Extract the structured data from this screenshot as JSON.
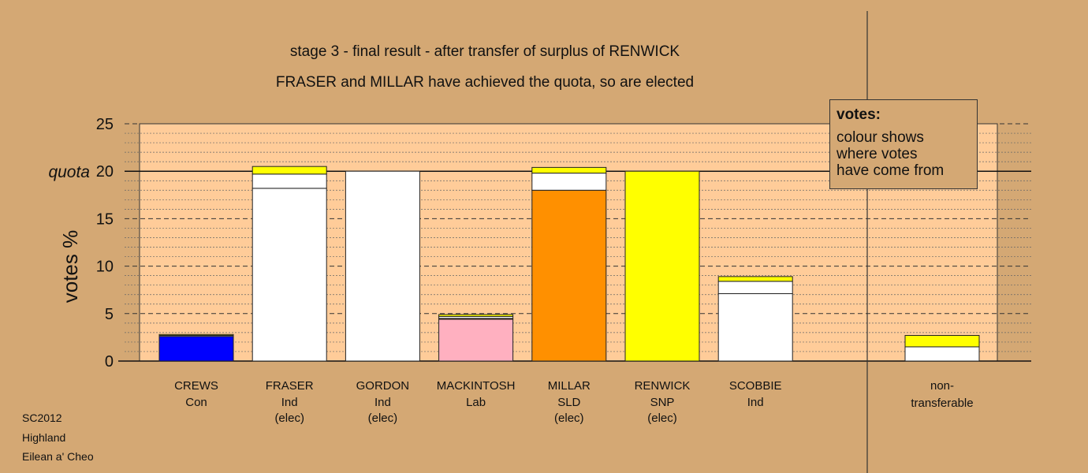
{
  "chart_data": {
    "type": "bar",
    "stacked": true,
    "title": "stage 3 - final result - after transfer of surplus of RENWICK",
    "subtitle": "FRASER and MILLAR have achieved the quota, so are elected",
    "ylabel": "votes %",
    "ylim": [
      0,
      25
    ],
    "yticks": [
      0,
      5,
      10,
      15,
      20,
      25
    ],
    "quota": 20,
    "quota_label": "quota",
    "grid": true,
    "categories": [
      {
        "name": "CREWS",
        "party": "Con",
        "status": "",
        "segments": [
          {
            "value": 2.6,
            "color": "#0000ff"
          },
          {
            "value": 0.1,
            "color": "#ffffff"
          },
          {
            "value": 0.1,
            "color": "#ffff00"
          }
        ]
      },
      {
        "name": "FRASER",
        "party": "Ind",
        "status": "(elec)",
        "segments": [
          {
            "value": 18.2,
            "color": "#ffffff"
          },
          {
            "value": 1.5,
            "color": "#ffffff"
          },
          {
            "value": 0.8,
            "color": "#ffff00"
          }
        ]
      },
      {
        "name": "GORDON",
        "party": "Ind",
        "status": "(elec)",
        "segments": [
          {
            "value": 20.0,
            "color": "#ffffff"
          }
        ]
      },
      {
        "name": "MACKINTOSH",
        "party": "Lab",
        "status": "",
        "segments": [
          {
            "value": 4.4,
            "color": "#ffb0c0"
          },
          {
            "value": 0.1,
            "color": "#ff8c00"
          },
          {
            "value": 0.2,
            "color": "#ffffff"
          },
          {
            "value": 0.2,
            "color": "#ffff00"
          }
        ]
      },
      {
        "name": "MILLAR",
        "party": "SLD",
        "status": "(elec)",
        "segments": [
          {
            "value": 18.0,
            "color": "#ff9000"
          },
          {
            "value": 1.8,
            "color": "#ffffff"
          },
          {
            "value": 0.6,
            "color": "#ffff00"
          }
        ]
      },
      {
        "name": "RENWICK",
        "party": "SNP",
        "status": "(elec)",
        "segments": [
          {
            "value": 20.0,
            "color": "#ffff00"
          }
        ]
      },
      {
        "name": "SCOBBIE",
        "party": "Ind",
        "status": "",
        "segments": [
          {
            "value": 7.1,
            "color": "#ffffff"
          },
          {
            "value": 1.3,
            "color": "#ffffff"
          },
          {
            "value": 0.5,
            "color": "#ffff00"
          }
        ]
      }
    ],
    "nontransferable": {
      "label_line1": "non-",
      "label_line2": "transferable",
      "segments": [
        {
          "value": 1.5,
          "color": "#ffffff"
        },
        {
          "value": 1.2,
          "color": "#ffff00"
        }
      ]
    }
  },
  "legend": {
    "title": "votes:",
    "line1": "colour shows",
    "line2": "where votes",
    "line3": "have come from"
  },
  "footer": {
    "line1": "SC2012",
    "line2": "Highland",
    "line3": "Eilean a' Cheo"
  }
}
